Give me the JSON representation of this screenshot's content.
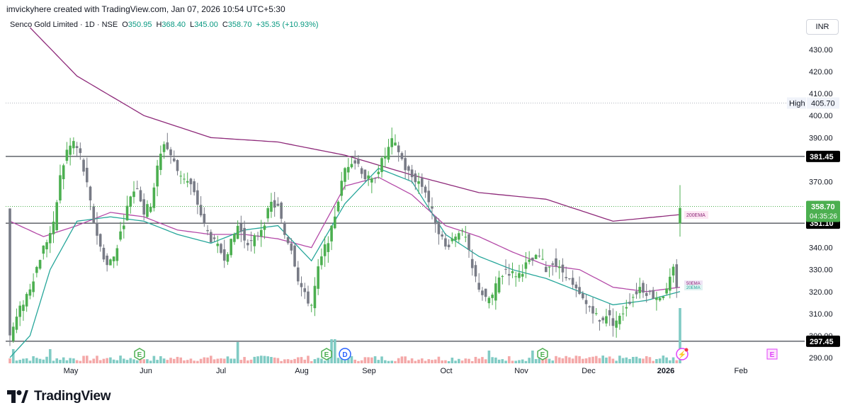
{
  "header": {
    "caption": "imvickyhere created with TradingView.com, Jan 07, 2026 10:54 UTC+5:30"
  },
  "legend": {
    "symbol": "Senco Gold Limited · 1D · NSE",
    "open_label": "O",
    "open": "350.95",
    "high_label": "H",
    "high": "368.40",
    "low_label": "L",
    "low": "345.00",
    "close_label": "C",
    "close": "358.70",
    "change": "+35.35 (+10.93%)"
  },
  "currency": "INR",
  "footer": {
    "brand": "TradingView"
  },
  "colors": {
    "up": "#4caf50",
    "down": "#787b86",
    "ema200": "#8e2a7a",
    "ema50": "#b44aa8",
    "ema20": "#26a69a",
    "vol_up": "#80cbc4",
    "vol_down": "#f4a8a8",
    "event_green": "#4caf50",
    "event_blue": "#2962ff",
    "event_magenta": "#e040fb"
  },
  "chart_data": {
    "type": "candlestick",
    "title": "Senco Gold Limited · 1D · NSE",
    "x_tick_labels": [
      "May",
      "Jun",
      "Jul",
      "Aug",
      "Sep",
      "Oct",
      "Nov",
      "Dec",
      "2026",
      "Feb"
    ],
    "y_tick_labels": [
      "290.00",
      "300.00",
      "310.00",
      "320.00",
      "330.00",
      "340.00",
      "370.00",
      "390.00",
      "400.00",
      "410.00",
      "420.00",
      "430.00"
    ],
    "ylim": [
      286,
      440
    ],
    "horizontal_levels": [
      {
        "value": 381.45,
        "label": "381.45",
        "style": "solid"
      },
      {
        "value": 351.1,
        "label": "351.10",
        "style": "solid"
      },
      {
        "value": 297.45,
        "label": "297.45",
        "style": "solid"
      },
      {
        "value": 405.7,
        "label": "405.70",
        "tag": "High",
        "style": "dotted"
      }
    ],
    "last_price": {
      "value": 358.7,
      "label": "358.70",
      "countdown": "04:35:26"
    },
    "ema_labels": [
      "200EMA",
      "50EMA",
      "20EMA"
    ],
    "event_markers": [
      {
        "letter": "E",
        "month": "Jun"
      },
      {
        "letter": "E",
        "month": "Aug"
      },
      {
        "letter": "D",
        "month": "Aug"
      },
      {
        "letter": "E",
        "month": "Nov"
      },
      {
        "letter": "⚡",
        "month": "Jan"
      },
      {
        "letter": "E",
        "month": "Feb"
      }
    ],
    "anchors_close": [
      [
        0,
        300
      ],
      [
        3,
        312
      ],
      [
        6,
        322
      ],
      [
        10,
        340
      ],
      [
        13,
        350
      ],
      [
        15,
        372
      ],
      [
        17,
        384
      ],
      [
        19,
        388
      ],
      [
        21,
        382
      ],
      [
        23,
        368
      ],
      [
        25,
        352
      ],
      [
        27,
        340
      ],
      [
        29,
        332
      ],
      [
        31,
        336
      ],
      [
        34,
        352
      ],
      [
        36,
        364
      ],
      [
        38,
        368
      ],
      [
        40,
        356
      ],
      [
        42,
        360
      ],
      [
        44,
        376
      ],
      [
        46,
        388
      ],
      [
        48,
        382
      ],
      [
        50,
        375
      ],
      [
        52,
        372
      ],
      [
        54,
        368
      ],
      [
        56,
        360
      ],
      [
        58,
        350
      ],
      [
        60,
        344
      ],
      [
        62,
        340
      ],
      [
        64,
        336
      ],
      [
        66,
        342
      ],
      [
        68,
        350
      ],
      [
        70,
        344
      ],
      [
        72,
        342
      ],
      [
        74,
        346
      ],
      [
        76,
        352
      ],
      [
        78,
        360
      ],
      [
        80,
        358
      ],
      [
        82,
        346
      ],
      [
        84,
        340
      ],
      [
        86,
        326
      ],
      [
        88,
        318
      ],
      [
        90,
        314
      ],
      [
        92,
        330
      ],
      [
        94,
        340
      ],
      [
        96,
        348
      ],
      [
        98,
        362
      ],
      [
        100,
        376
      ],
      [
        102,
        380
      ],
      [
        104,
        378
      ],
      [
        106,
        372
      ],
      [
        108,
        370
      ],
      [
        110,
        376
      ],
      [
        112,
        382
      ],
      [
        114,
        388
      ],
      [
        116,
        384
      ],
      [
        118,
        376
      ],
      [
        120,
        372
      ],
      [
        122,
        370
      ],
      [
        124,
        366
      ],
      [
        126,
        356
      ],
      [
        128,
        348
      ],
      [
        130,
        340
      ],
      [
        132,
        344
      ],
      [
        134,
        348
      ],
      [
        136,
        344
      ],
      [
        138,
        330
      ],
      [
        140,
        322
      ],
      [
        142,
        316
      ],
      [
        144,
        318
      ],
      [
        146,
        326
      ],
      [
        148,
        330
      ],
      [
        150,
        328
      ],
      [
        152,
        328
      ],
      [
        154,
        332
      ],
      [
        156,
        334
      ],
      [
        158,
        336
      ],
      [
        160,
        330
      ],
      [
        162,
        334
      ],
      [
        164,
        330
      ],
      [
        166,
        328
      ],
      [
        168,
        322
      ],
      [
        170,
        318
      ],
      [
        172,
        314
      ],
      [
        174,
        312
      ],
      [
        176,
        306
      ],
      [
        178,
        310
      ],
      [
        180,
        306
      ],
      [
        182,
        308
      ],
      [
        184,
        314
      ],
      [
        186,
        318
      ],
      [
        188,
        322
      ],
      [
        190,
        320
      ],
      [
        192,
        318
      ],
      [
        194,
        318
      ],
      [
        196,
        320
      ],
      [
        198,
        330
      ],
      [
        199,
        323
      ],
      [
        200,
        358.7
      ]
    ],
    "ema200_anchors": [
      [
        6,
        440
      ],
      [
        20,
        418
      ],
      [
        40,
        400
      ],
      [
        60,
        390
      ],
      [
        80,
        388
      ],
      [
        100,
        382
      ],
      [
        120,
        373
      ],
      [
        140,
        365
      ],
      [
        160,
        362
      ],
      [
        180,
        352
      ],
      [
        200,
        355
      ]
    ],
    "ema50_anchors": [
      [
        0,
        352
      ],
      [
        10,
        345
      ],
      [
        20,
        350
      ],
      [
        30,
        356
      ],
      [
        40,
        354
      ],
      [
        50,
        348
      ],
      [
        60,
        346
      ],
      [
        70,
        346
      ],
      [
        80,
        344
      ],
      [
        90,
        340
      ],
      [
        100,
        368
      ],
      [
        110,
        372
      ],
      [
        120,
        364
      ],
      [
        130,
        350
      ],
      [
        140,
        345
      ],
      [
        150,
        338
      ],
      [
        160,
        332
      ],
      [
        170,
        330
      ],
      [
        180,
        322
      ],
      [
        190,
        320
      ],
      [
        200,
        322
      ]
    ],
    "ema20_anchors": [
      [
        0,
        290
      ],
      [
        6,
        300
      ],
      [
        12,
        330
      ],
      [
        20,
        352
      ],
      [
        30,
        354
      ],
      [
        40,
        352
      ],
      [
        50,
        346
      ],
      [
        60,
        342
      ],
      [
        70,
        348
      ],
      [
        80,
        350
      ],
      [
        90,
        334
      ],
      [
        100,
        360
      ],
      [
        110,
        376
      ],
      [
        120,
        370
      ],
      [
        130,
        346
      ],
      [
        140,
        336
      ],
      [
        150,
        330
      ],
      [
        160,
        326
      ],
      [
        170,
        320
      ],
      [
        180,
        314
      ],
      [
        190,
        316
      ],
      [
        200,
        320
      ]
    ]
  }
}
